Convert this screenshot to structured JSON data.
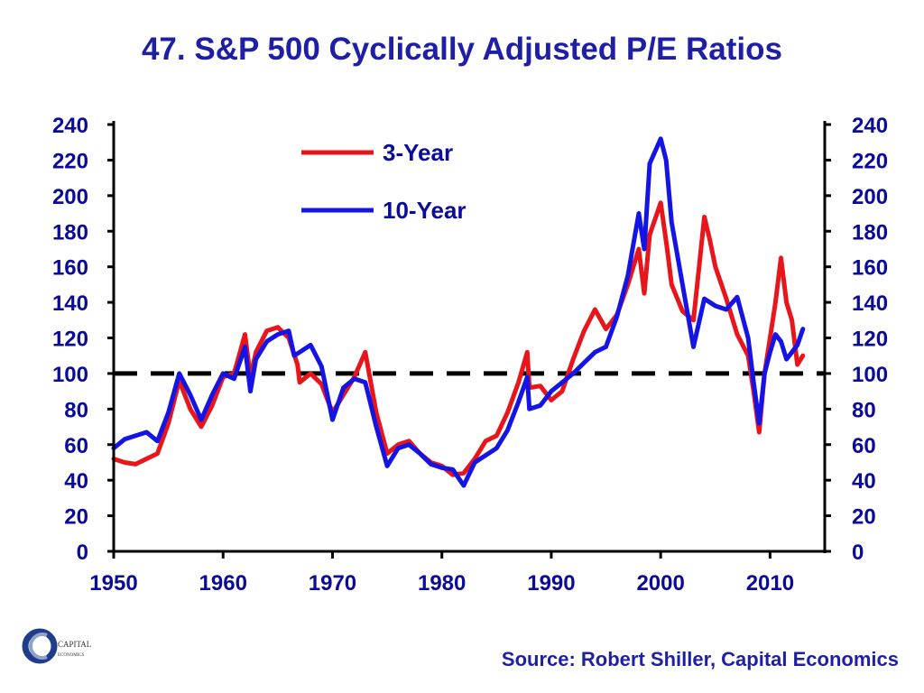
{
  "chart_data": {
    "type": "line",
    "title": "47. S&P 500 Cyclically Adjusted P/E Ratios",
    "source": "Source: Robert Shiller, Capital Economics",
    "xlim": [
      1950,
      2015
    ],
    "ylim": [
      0,
      240
    ],
    "x_ticks": [
      "1950",
      "1960",
      "1970",
      "1980",
      "1990",
      "2000",
      "2010"
    ],
    "y_ticks_left": [
      "0",
      "20",
      "40",
      "60",
      "80",
      "100",
      "120",
      "140",
      "160",
      "180",
      "200",
      "220",
      "240"
    ],
    "y_ticks_right": [
      "0",
      "20",
      "40",
      "60",
      "80",
      "100",
      "120",
      "140",
      "160",
      "180",
      "200",
      "220",
      "240"
    ],
    "grid": false,
    "legend_position": "top-center",
    "reference_line": {
      "y": 100,
      "style": "dashed",
      "color": "#000000"
    },
    "series": [
      {
        "name": "3-Year",
        "color": "#e8151b",
        "points": [
          [
            1950,
            52
          ],
          [
            1951,
            50
          ],
          [
            1952,
            49
          ],
          [
            1953,
            52
          ],
          [
            1954,
            55
          ],
          [
            1955,
            72
          ],
          [
            1956,
            96
          ],
          [
            1957,
            80
          ],
          [
            1958,
            70
          ],
          [
            1959,
            82
          ],
          [
            1960,
            98
          ],
          [
            1961,
            100
          ],
          [
            1962,
            122
          ],
          [
            1962.5,
            98
          ],
          [
            1963,
            112
          ],
          [
            1964,
            124
          ],
          [
            1965,
            126
          ],
          [
            1966,
            120
          ],
          [
            1966.8,
            105
          ],
          [
            1967,
            95
          ],
          [
            1968,
            100
          ],
          [
            1969,
            94
          ],
          [
            1970,
            78
          ],
          [
            1971,
            88
          ],
          [
            1972,
            98
          ],
          [
            1973,
            112
          ],
          [
            1974,
            78
          ],
          [
            1975,
            55
          ],
          [
            1976,
            60
          ],
          [
            1977,
            62
          ],
          [
            1978,
            55
          ],
          [
            1979,
            50
          ],
          [
            1980,
            48
          ],
          [
            1981,
            43
          ],
          [
            1982,
            44
          ],
          [
            1983,
            52
          ],
          [
            1984,
            62
          ],
          [
            1985,
            65
          ],
          [
            1986,
            78
          ],
          [
            1987,
            95
          ],
          [
            1987.8,
            112
          ],
          [
            1988,
            92
          ],
          [
            1989,
            93
          ],
          [
            1990,
            85
          ],
          [
            1991,
            90
          ],
          [
            1992,
            108
          ],
          [
            1993,
            124
          ],
          [
            1994,
            136
          ],
          [
            1995,
            125
          ],
          [
            1996,
            133
          ],
          [
            1997,
            150
          ],
          [
            1998,
            170
          ],
          [
            1998.5,
            145
          ],
          [
            1999,
            178
          ],
          [
            2000,
            196
          ],
          [
            2000.6,
            170
          ],
          [
            2001,
            150
          ],
          [
            2002,
            135
          ],
          [
            2003,
            130
          ],
          [
            2004,
            188
          ],
          [
            2004.5,
            175
          ],
          [
            2005,
            160
          ],
          [
            2006,
            142
          ],
          [
            2007,
            122
          ],
          [
            2008,
            110
          ],
          [
            2008.5,
            90
          ],
          [
            2009,
            67
          ],
          [
            2009.5,
            100
          ],
          [
            2010,
            120
          ],
          [
            2010.5,
            140
          ],
          [
            2011,
            165
          ],
          [
            2011.5,
            140
          ],
          [
            2012,
            130
          ],
          [
            2012.5,
            105
          ],
          [
            2013,
            110
          ]
        ]
      },
      {
        "name": "10-Year",
        "color": "#1414e6",
        "points": [
          [
            1950,
            58
          ],
          [
            1951,
            63
          ],
          [
            1952,
            65
          ],
          [
            1953,
            67
          ],
          [
            1954,
            62
          ],
          [
            1955,
            78
          ],
          [
            1956,
            100
          ],
          [
            1957,
            88
          ],
          [
            1958,
            74
          ],
          [
            1959,
            88
          ],
          [
            1960,
            100
          ],
          [
            1961,
            97
          ],
          [
            1962,
            115
          ],
          [
            1962.5,
            90
          ],
          [
            1963,
            108
          ],
          [
            1964,
            118
          ],
          [
            1965,
            122
          ],
          [
            1966,
            124
          ],
          [
            1966.5,
            110
          ],
          [
            1967,
            112
          ],
          [
            1968,
            116
          ],
          [
            1969,
            104
          ],
          [
            1970,
            74
          ],
          [
            1971,
            92
          ],
          [
            1972,
            97
          ],
          [
            1973,
            95
          ],
          [
            1974,
            70
          ],
          [
            1975,
            48
          ],
          [
            1976,
            58
          ],
          [
            1977,
            60
          ],
          [
            1978,
            55
          ],
          [
            1979,
            49
          ],
          [
            1980,
            47
          ],
          [
            1981,
            46
          ],
          [
            1982,
            37
          ],
          [
            1983,
            50
          ],
          [
            1984,
            54
          ],
          [
            1985,
            58
          ],
          [
            1986,
            68
          ],
          [
            1987,
            84
          ],
          [
            1987.8,
            98
          ],
          [
            1988,
            80
          ],
          [
            1989,
            82
          ],
          [
            1990,
            90
          ],
          [
            1991,
            95
          ],
          [
            1992,
            100
          ],
          [
            1993,
            106
          ],
          [
            1994,
            112
          ],
          [
            1995,
            115
          ],
          [
            1996,
            132
          ],
          [
            1997,
            155
          ],
          [
            1998,
            190
          ],
          [
            1998.5,
            170
          ],
          [
            1999,
            218
          ],
          [
            2000,
            232
          ],
          [
            2000.5,
            220
          ],
          [
            2001,
            185
          ],
          [
            2002,
            150
          ],
          [
            2003,
            115
          ],
          [
            2004,
            142
          ],
          [
            2005,
            138
          ],
          [
            2006,
            136
          ],
          [
            2007,
            143
          ],
          [
            2008,
            120
          ],
          [
            2008.5,
            95
          ],
          [
            2009,
            72
          ],
          [
            2009.5,
            100
          ],
          [
            2010,
            112
          ],
          [
            2010.5,
            122
          ],
          [
            2011,
            118
          ],
          [
            2011.5,
            108
          ],
          [
            2012,
            112
          ],
          [
            2012.5,
            116
          ],
          [
            2013,
            125
          ]
        ]
      }
    ]
  },
  "logo": {
    "line1": "CAPITAL",
    "line2": "ECONOMICS",
    "color": "#1f3d8a"
  }
}
